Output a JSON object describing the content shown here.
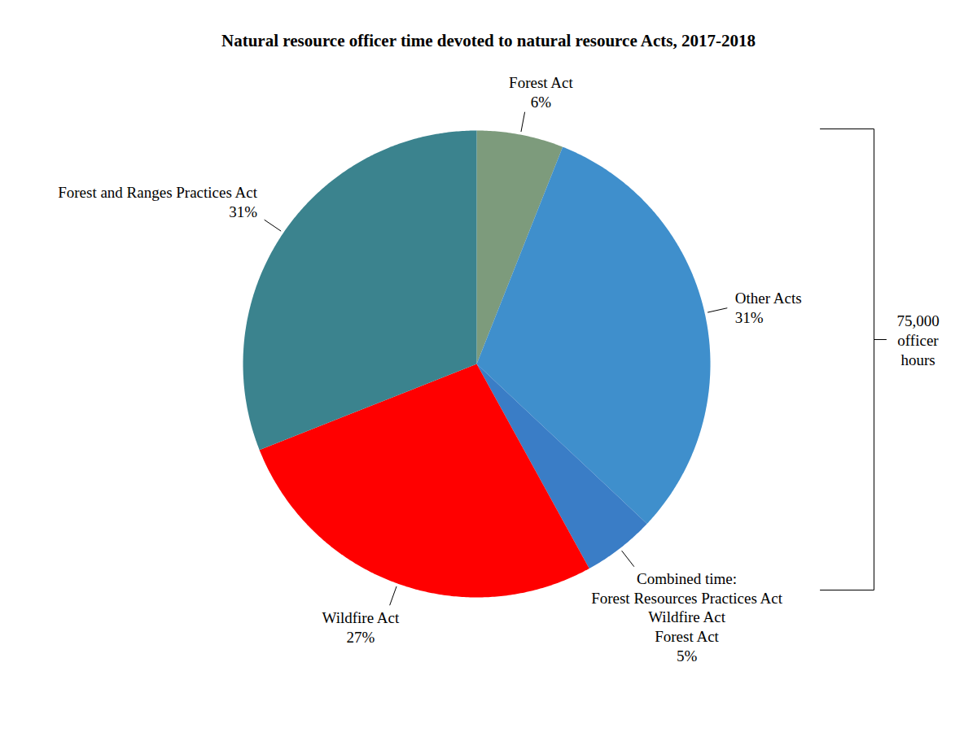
{
  "chart_data": {
    "type": "pie",
    "title": "Natural resource officer time devoted to natural resource Acts, 2017-2018",
    "categories": [
      "Forest Act",
      "Other Acts",
      "Combined time:\nForest Resources Practices Act\nWildfire Act\nForest Act",
      "Wildfire Act",
      "Forest and Ranges Practices Act"
    ],
    "values": [
      6,
      31,
      5,
      27,
      31
    ],
    "value_labels": [
      "6%",
      "31%",
      "5%",
      "27%",
      "31%"
    ],
    "colors": [
      "#7d9b7c",
      "#3f8fcc",
      "#3a7dc6",
      "#ff0000",
      "#3b838e"
    ],
    "data_labels": true,
    "annotations": [
      {
        "text": "75,000\nofficer\nhours"
      }
    ]
  }
}
